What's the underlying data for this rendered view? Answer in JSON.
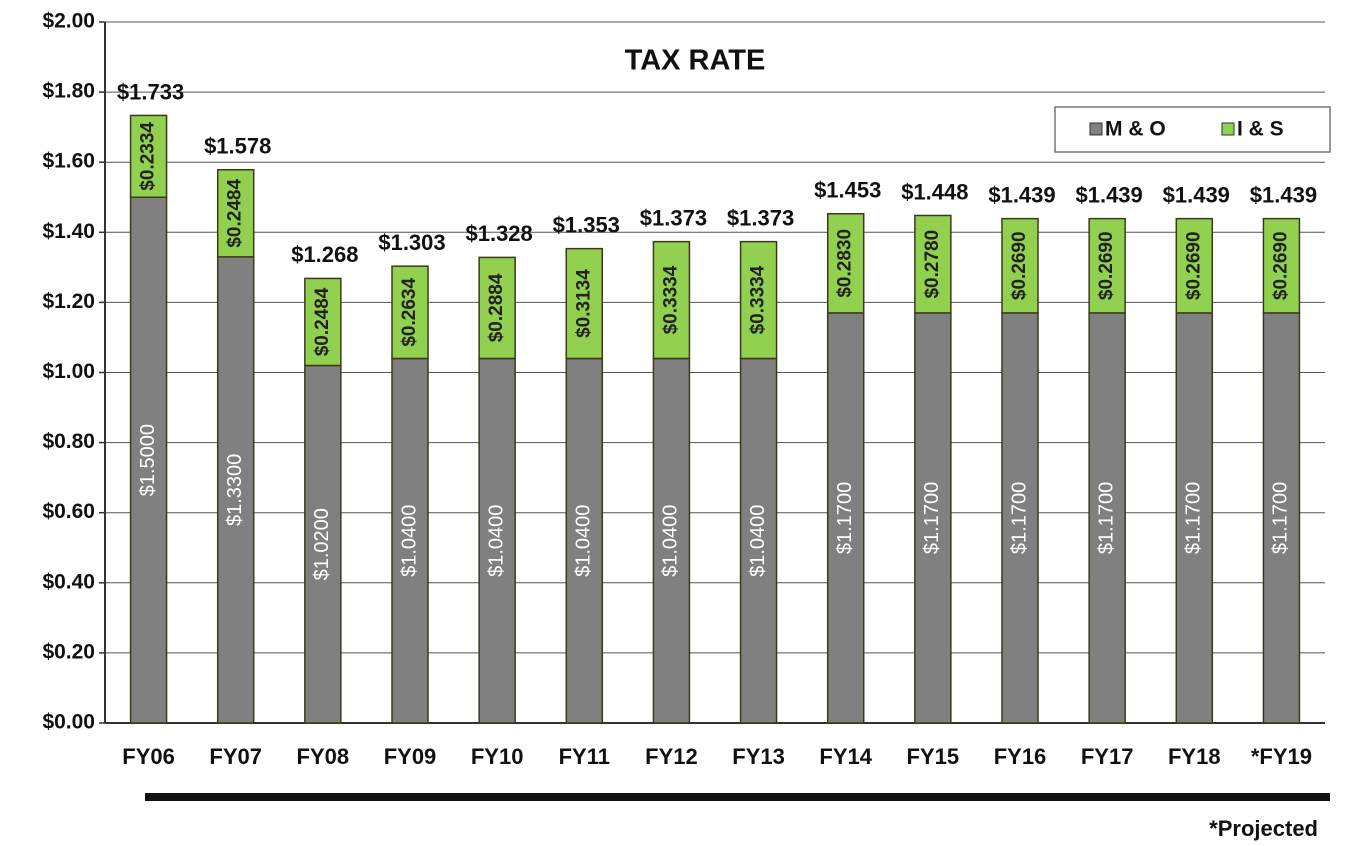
{
  "chart_data": {
    "type": "stacked_bar",
    "title": "TAX RATE",
    "categories": [
      "FY06",
      "FY07",
      "FY08",
      "FY09",
      "FY10",
      "FY11",
      "FY12",
      "FY13",
      "FY14",
      "FY15",
      "FY16",
      "FY17",
      "FY18",
      "*FY19"
    ],
    "series": [
      {
        "name": "M & O",
        "color": "#808080",
        "values": [
          1.5,
          1.33,
          1.02,
          1.04,
          1.04,
          1.04,
          1.04,
          1.04,
          1.17,
          1.17,
          1.17,
          1.17,
          1.17,
          1.17
        ],
        "value_labels": [
          "$1.5000",
          "$1.3300",
          "$1.0200",
          "$1.0400",
          "$1.0400",
          "$1.0400",
          "$1.0400",
          "$1.0400",
          "$1.1700",
          "$1.1700",
          "$1.1700",
          "$1.1700",
          "$1.1700",
          "$1.1700"
        ]
      },
      {
        "name": "I & S",
        "color": "#92d050",
        "values": [
          0.2334,
          0.2484,
          0.2484,
          0.2634,
          0.2884,
          0.3134,
          0.3334,
          0.3334,
          0.283,
          0.278,
          0.269,
          0.269,
          0.269,
          0.269
        ],
        "value_labels": [
          "$0.2334",
          "$0.2484",
          "$0.2484",
          "$0.2634",
          "$0.2884",
          "$0.3134",
          "$0.3334",
          "$0.3334",
          "$0.2830",
          "$0.2780",
          "$0.2690",
          "$0.2690",
          "$0.2690",
          "$0.2690"
        ]
      }
    ],
    "total_labels": [
      "$1.733",
      "$1.578",
      "$1.268",
      "$1.303",
      "$1.328",
      "$1.353",
      "$1.373",
      "$1.373",
      "$1.453",
      "$1.448",
      "$1.439",
      "$1.439",
      "$1.439",
      "$1.439"
    ],
    "ylim": [
      0,
      2
    ],
    "yticks": [
      {
        "value": 0,
        "label": "$0.00"
      },
      {
        "value": 0.2,
        "label": "$0.20"
      },
      {
        "value": 0.4,
        "label": "$0.40"
      },
      {
        "value": 0.6,
        "label": "$0.60"
      },
      {
        "value": 0.8,
        "label": "$0.80"
      },
      {
        "value": 1,
        "label": "$1.00"
      },
      {
        "value": 1.2,
        "label": "$1.20"
      },
      {
        "value": 1.4,
        "label": "$1.40"
      },
      {
        "value": 1.6,
        "label": "$1.60"
      },
      {
        "value": 1.8,
        "label": "$1.80"
      },
      {
        "value": 2,
        "label": "$2.00"
      }
    ],
    "grid": true,
    "legend": "top-right",
    "footnote": "*Projected"
  }
}
